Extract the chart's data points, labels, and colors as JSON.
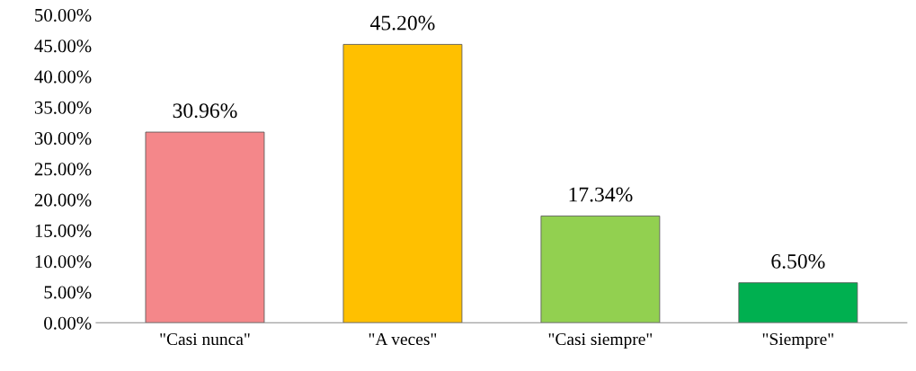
{
  "chart_data": {
    "type": "bar",
    "categories": [
      "\"Casi nunca\"",
      "\"A veces\"",
      "\"Casi siempre\"",
      "\"Siempre\""
    ],
    "values": [
      30.96,
      45.2,
      17.34,
      6.5
    ],
    "colors": [
      "#f4878a",
      "#ffc000",
      "#92d050",
      "#00b050"
    ],
    "value_labels": [
      "30.96%",
      "45.20%",
      "17.34%",
      "6.50%"
    ],
    "ylim": [
      0,
      50
    ],
    "yticks": [
      {
        "value": 0,
        "label": "0.00%"
      },
      {
        "value": 5,
        "label": "5.00%"
      },
      {
        "value": 10,
        "label": "10.00%"
      },
      {
        "value": 15,
        "label": "15.00%"
      },
      {
        "value": 20,
        "label": "20.00%"
      },
      {
        "value": 25,
        "label": "25.00%"
      },
      {
        "value": 30,
        "label": "30.00%"
      },
      {
        "value": 35,
        "label": "35.00%"
      },
      {
        "value": 40,
        "label": "40.00%"
      },
      {
        "value": 45,
        "label": "45.00%"
      },
      {
        "value": 50,
        "label": "50.00%"
      }
    ],
    "grid": false
  }
}
